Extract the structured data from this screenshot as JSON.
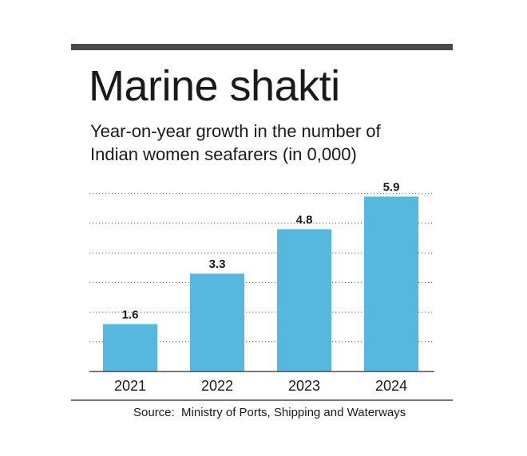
{
  "title": "Marine shakti",
  "subtitle_lines": [
    "Year-on-year growth in the number of",
    "Indian women seafarers (in 0,000)"
  ],
  "source": "Source:  Ministry of Ports, Shipping and Waterways",
  "colors": {
    "bar": "#56B8DF",
    "rule": "#4a4a4a",
    "grid": "#555555",
    "text": "#1a1a1a"
  },
  "chart_data": {
    "type": "bar",
    "categories": [
      "2021",
      "2022",
      "2023",
      "2024"
    ],
    "values": [
      1.6,
      3.3,
      4.8,
      5.9
    ],
    "data_labels": [
      "1.6",
      "3.3",
      "4.8",
      "5.9"
    ],
    "title": "Marine shakti",
    "subtitle": "Year-on-year growth in the number of Indian women seafarers (in 0,000)",
    "ylim": [
      0,
      6
    ],
    "grid": true,
    "legend": "none"
  }
}
